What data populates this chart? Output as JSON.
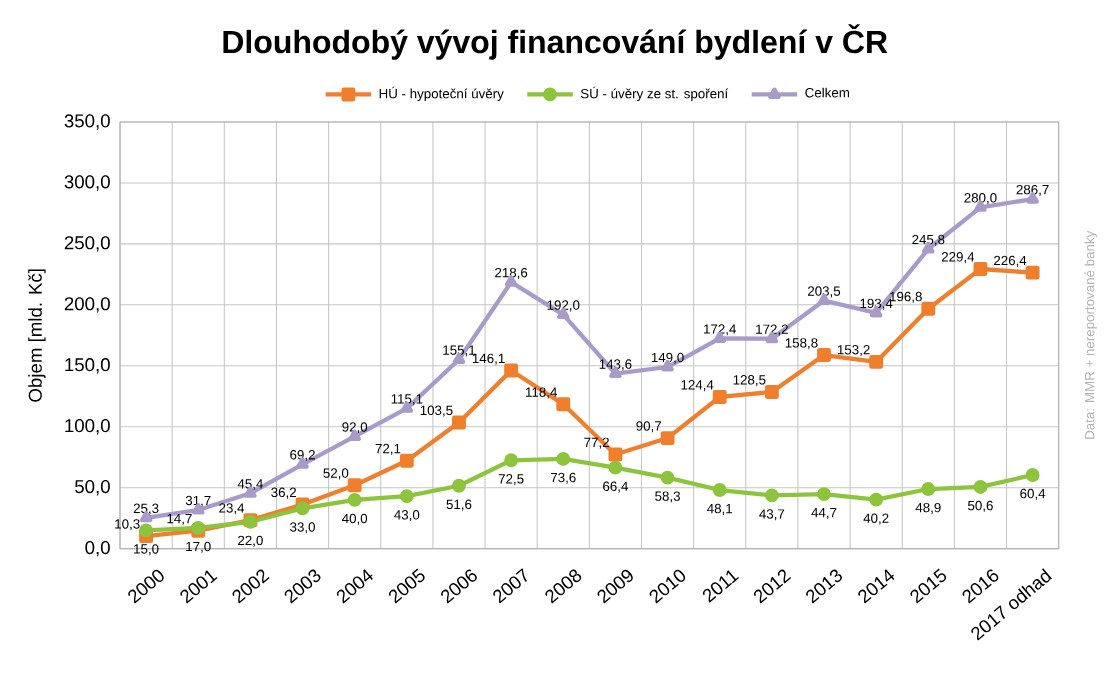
{
  "chart_data": {
    "type": "line",
    "title": "Dlouhodobý vývoj financování bydlení v ČR",
    "ylabel": "Objem [mld. Kč]",
    "annotations": [
      "Data: MMR + nereportované banky"
    ],
    "categories": [
      "2000",
      "2001",
      "2002",
      "2003",
      "2004",
      "2005",
      "2006",
      "2007",
      "2008",
      "2009",
      "2010",
      "2011",
      "2012",
      "2013",
      "2014",
      "2015",
      "2016",
      "2017 odhad"
    ],
    "ylim": [
      0,
      350
    ],
    "yticks": [
      {
        "value": 0,
        "label": "0,0"
      },
      {
        "value": 50,
        "label": "50,0"
      },
      {
        "value": 100,
        "label": "100,0"
      },
      {
        "value": 150,
        "label": "150,0"
      },
      {
        "value": 200,
        "label": "200,0"
      },
      {
        "value": 250,
        "label": "250,0"
      },
      {
        "value": 300,
        "label": "300,0"
      },
      {
        "value": 350,
        "label": "350,0"
      }
    ],
    "grid": true,
    "legend": "top",
    "series": [
      {
        "name": "HÚ - hypoteční úvěry",
        "color": "#f07f2d",
        "marker": "square",
        "values": [
          10.3,
          14.7,
          23.4,
          36.2,
          52.0,
          72.1,
          103.5,
          146.1,
          118.4,
          77.2,
          90.7,
          124.4,
          128.5,
          158.8,
          153.2,
          196.8,
          229.4,
          226.4
        ],
        "value_labels": [
          "10,3",
          "14,7",
          "23,4",
          "36,2",
          "52,0",
          "72,1",
          "103,5",
          "146,1",
          "118,4",
          "77,2",
          "90,7",
          "124,4",
          "128,5",
          "158,8",
          "153,2",
          "196,8",
          "229,4",
          "226,4"
        ]
      },
      {
        "name": "SÚ - úvěry ze st. spoření",
        "color": "#8cc43c",
        "marker": "circle",
        "values": [
          15.0,
          17.0,
          22.0,
          33.0,
          40.0,
          43.0,
          51.6,
          72.5,
          73.6,
          66.4,
          58.3,
          48.1,
          43.7,
          44.7,
          40.2,
          48.9,
          50.6,
          60.4
        ],
        "value_labels": [
          "15,0",
          "17,0",
          "22,0",
          "33,0",
          "40,0",
          "43,0",
          "51,6",
          "72,5",
          "73,6",
          "66,4",
          "58,3",
          "48,1",
          "43,7",
          "44,7",
          "40,2",
          "48,9",
          "50,6",
          "60,4"
        ]
      },
      {
        "name": "Celkem",
        "color": "#a99bc9",
        "marker": "triangle",
        "values": [
          25.3,
          31.7,
          45.4,
          69.2,
          92.0,
          115.1,
          155.1,
          218.6,
          192.0,
          143.6,
          149.0,
          172.4,
          172.2,
          203.5,
          193.4,
          245.8,
          280.0,
          286.7
        ],
        "value_labels": [
          "25,3",
          "31,7",
          "45,4",
          "69,2",
          "92,0",
          "115,1",
          "155,1",
          "218,6",
          "192,0",
          "143,6",
          "149,0",
          "172,4",
          "172,2",
          "203,5",
          "193,4",
          "245,8",
          "280,0",
          "286,7"
        ]
      }
    ]
  }
}
